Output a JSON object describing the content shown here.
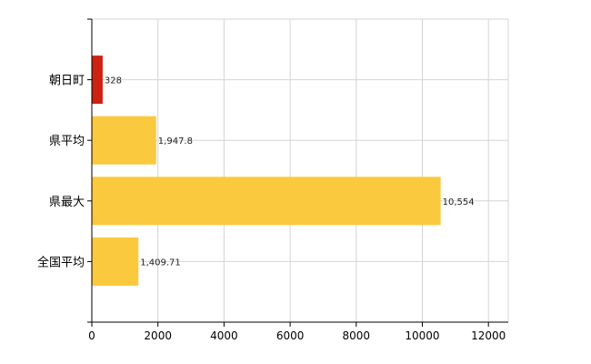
{
  "chart_data": {
    "type": "bar",
    "orientation": "horizontal",
    "title": "",
    "xlabel": "",
    "ylabel": "",
    "categories": [
      "朝日町",
      "県平均",
      "県最大",
      "全国平均"
    ],
    "values": [
      328,
      1947.8,
      10554,
      1409.71
    ],
    "value_labels": [
      "328",
      "1,947.8",
      "10,554",
      "1,409.71"
    ],
    "bar_colors": [
      "#cc2211",
      "#fbc93d",
      "#fbc93d",
      "#fbc93d"
    ],
    "xlim": [
      0,
      12600
    ],
    "xticks": [
      0,
      2000,
      4000,
      6000,
      8000,
      10000,
      12000
    ],
    "grid": true,
    "legend": "none"
  }
}
